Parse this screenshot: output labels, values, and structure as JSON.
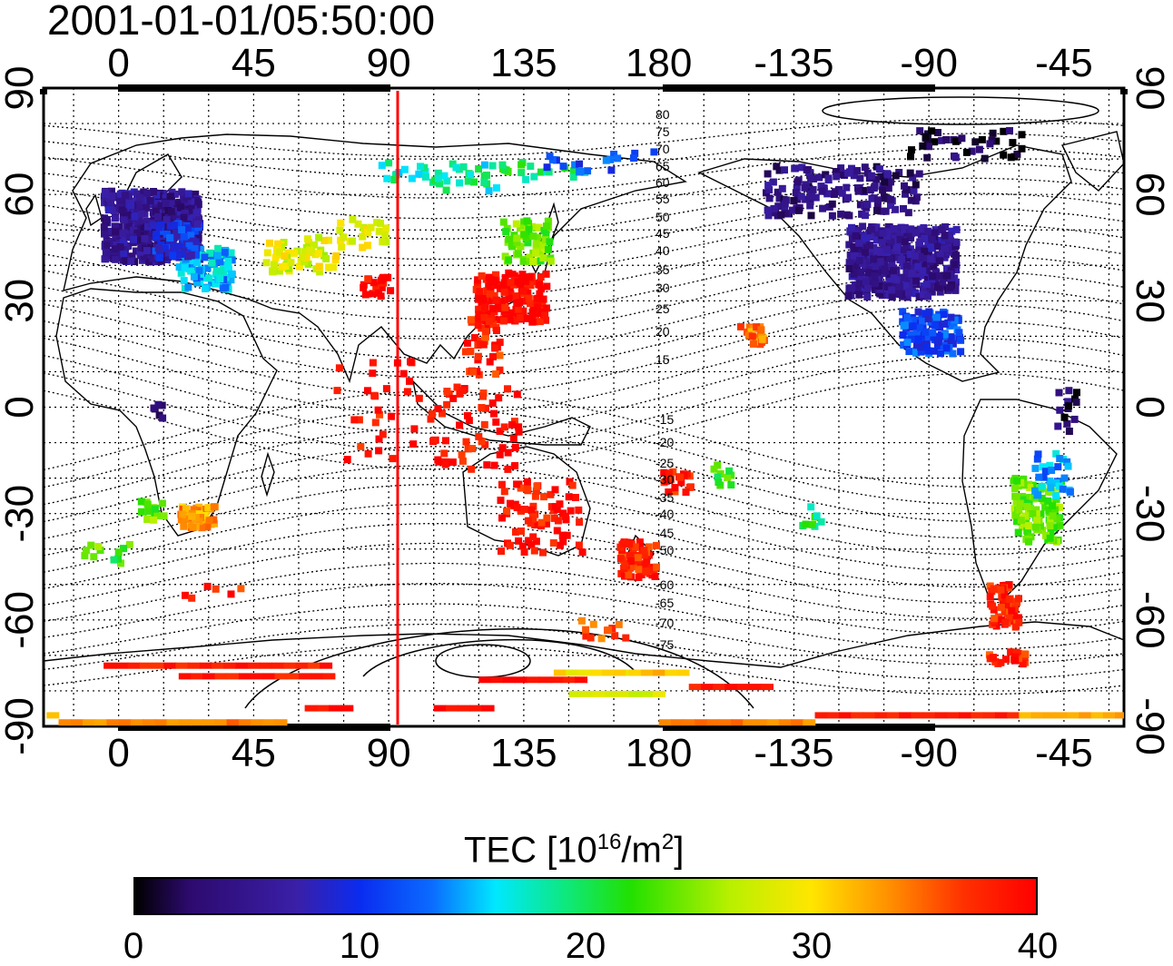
{
  "title": "2001-01-01/05:50:00",
  "map": {
    "projection": "equirectangular",
    "lon_ticks": [
      "0",
      "45",
      "90",
      "135",
      "180",
      "-135",
      "-90",
      "-45"
    ],
    "lat_ticks": [
      "90",
      "60",
      "30",
      "0",
      "-30",
      "-60",
      "-90"
    ],
    "mlat_labels_north": [
      "80",
      "75",
      "70",
      "65",
      "60",
      "55",
      "50",
      "45",
      "40",
      "35",
      "30",
      "25",
      "20",
      "15"
    ],
    "mlat_labels_south": [
      "-15",
      "-20",
      "-25",
      "-30",
      "-35",
      "-40",
      "-45",
      "-50",
      "-60",
      "-65",
      "-70",
      "-75"
    ],
    "sun_meridian_color": "#ff0000",
    "grid": "dotted"
  },
  "colorbar": {
    "title_main": "TEC  [10",
    "title_exp1": "16",
    "title_mid": "/m",
    "title_exp2": "2",
    "title_end": "]",
    "min": 0,
    "max": 40,
    "ticks": [
      "0",
      "10",
      "20",
      "30",
      "40"
    ],
    "colormap": [
      "#000000",
      "#3a1fa8",
      "#0a2cf0",
      "#00e8ff",
      "#22e000",
      "#ffe600",
      "#ff8c00",
      "#ff0000"
    ]
  },
  "chart_data": {
    "type": "heatmap",
    "title": "2001-01-01/05:50:00",
    "xlabel": "",
    "ylabel": "",
    "value_label": "TEC  [10^16/m^2]",
    "vmin": 0,
    "vmax": 40,
    "regions": [
      {
        "lon": 10,
        "lat": 52,
        "tec": 5
      },
      {
        "lon": 30,
        "lat": 40,
        "tec": 15
      },
      {
        "lon": 60,
        "lat": 45,
        "tec": 28
      },
      {
        "lon": 80,
        "lat": 50,
        "tec": 29
      },
      {
        "lon": 105,
        "lat": 65,
        "tec": 18
      },
      {
        "lon": 135,
        "lat": 45,
        "tec": 24
      },
      {
        "lon": 130,
        "lat": 33,
        "tec": 40
      },
      {
        "lon": 120,
        "lat": 15,
        "tec": 38
      },
      {
        "lon": 120,
        "lat": -10,
        "tec": 39
      },
      {
        "lon": 135,
        "lat": -30,
        "tec": 39
      },
      {
        "lon": 172,
        "lat": -40,
        "tec": 38
      },
      {
        "lon": 25,
        "lat": -30,
        "tec": 33
      },
      {
        "lon": -100,
        "lat": 40,
        "tec": 5
      },
      {
        "lon": -90,
        "lat": 20,
        "tec": 11
      },
      {
        "lon": -115,
        "lat": 60,
        "tec": 4
      },
      {
        "lon": -55,
        "lat": -30,
        "tec": 24
      },
      {
        "lon": -65,
        "lat": -60,
        "tec": 38
      },
      {
        "lon": -150,
        "lat": 20,
        "tec": 34
      },
      {
        "lon": 95,
        "lat": -80,
        "tec": 39
      },
      {
        "lon": 45,
        "lat": -88,
        "tec": 34
      },
      {
        "lon": -100,
        "lat": -87,
        "tec": 38
      }
    ]
  }
}
